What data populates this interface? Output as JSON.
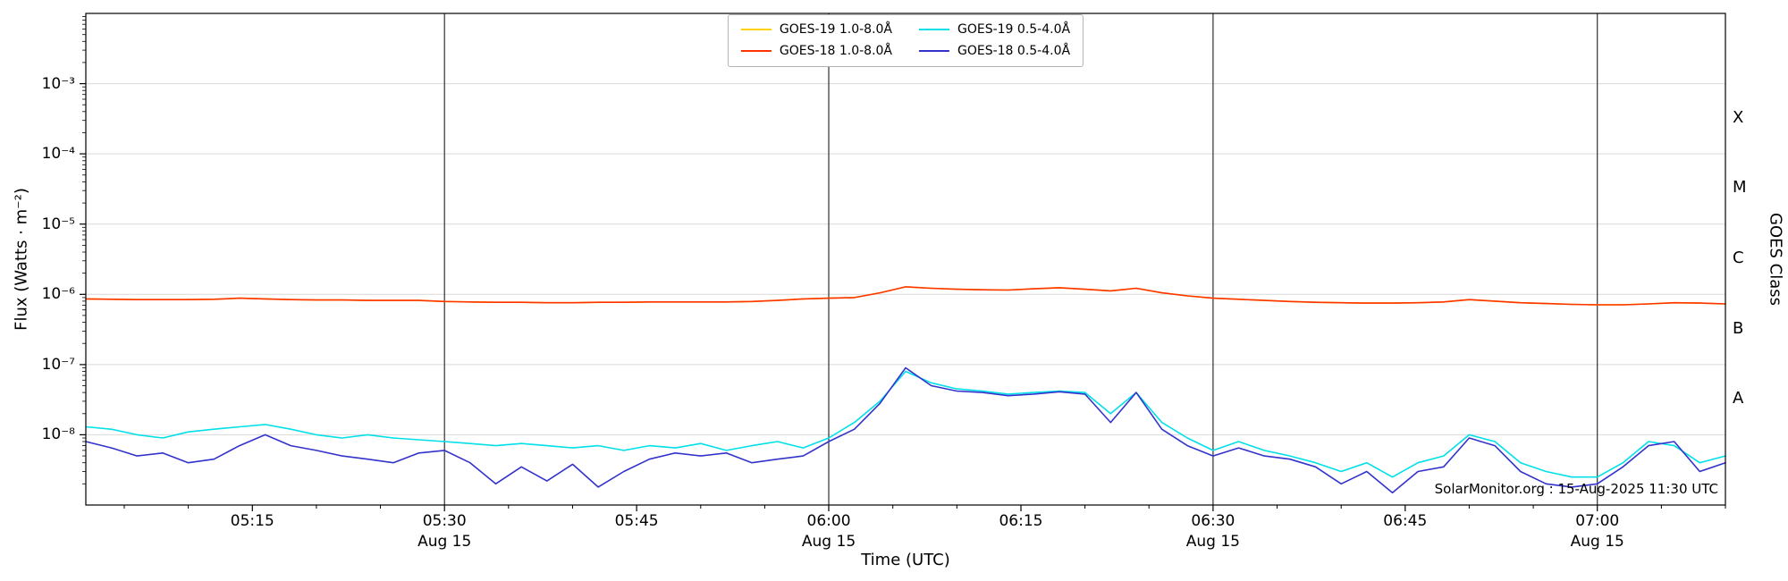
{
  "footer_note": "SolarMonitor.org : 15-Aug-2025 11:30 UTC",
  "chart_data": {
    "type": "line",
    "title": "",
    "xlabel": "Time (UTC)",
    "ylabel": "Flux (Watts · m⁻²)",
    "ylabel_right": "GOES Class",
    "x_unit": "minutes after 05:00 UTC, 15-Aug-2025",
    "x_domain": [
      2,
      130
    ],
    "y_scale": "log",
    "y_domain_exp": [
      -9,
      -2
    ],
    "grid": "horizontal gridlines at each decade; dark vertical lines at day-labelled ticks",
    "legend_position": "top center, 2 columns",
    "colors": {
      "grid": "#d9d9d9",
      "vline": "#2f2f2f",
      "frame": "#000000",
      "background": "#ffffff"
    },
    "x_ticks": [
      {
        "t": 15,
        "label": "05:15"
      },
      {
        "t": 30,
        "label": "05:30",
        "sublabel": "Aug 15",
        "vline": true
      },
      {
        "t": 45,
        "label": "05:45"
      },
      {
        "t": 60,
        "label": "06:00",
        "sublabel": "Aug 15",
        "vline": true
      },
      {
        "t": 75,
        "label": "06:15"
      },
      {
        "t": 90,
        "label": "06:30",
        "sublabel": "Aug 15",
        "vline": true
      },
      {
        "t": 105,
        "label": "06:45"
      },
      {
        "t": 120,
        "label": "07:00",
        "sublabel": "Aug 15",
        "vline": true
      }
    ],
    "y_ticks": [
      {
        "exp": -3,
        "label": "10⁻³"
      },
      {
        "exp": -4,
        "label": "10⁻⁴"
      },
      {
        "exp": -5,
        "label": "10⁻⁵"
      },
      {
        "exp": -6,
        "label": "10⁻⁶"
      },
      {
        "exp": -7,
        "label": "10⁻⁷"
      },
      {
        "exp": -8,
        "label": "10⁻⁸"
      }
    ],
    "goes_classes": [
      {
        "label": "X",
        "exp": -3.5
      },
      {
        "label": "M",
        "exp": -4.5
      },
      {
        "label": "C",
        "exp": -5.5
      },
      {
        "label": "B",
        "exp": -6.5
      },
      {
        "label": "A",
        "exp": -7.5
      }
    ],
    "x": [
      2,
      4,
      6,
      8,
      10,
      12,
      14,
      16,
      18,
      20,
      22,
      24,
      26,
      28,
      30,
      32,
      34,
      36,
      38,
      40,
      42,
      44,
      46,
      48,
      50,
      52,
      54,
      56,
      58,
      60,
      62,
      64,
      66,
      68,
      70,
      72,
      74,
      76,
      78,
      80,
      82,
      84,
      86,
      88,
      90,
      92,
      94,
      96,
      98,
      100,
      102,
      104,
      106,
      108,
      110,
      112,
      114,
      116,
      118,
      120,
      122,
      124,
      126,
      128,
      130
    ],
    "series": [
      {
        "name": "GOES-19 1.0-8.0Å",
        "color": "#ffd200",
        "note": "hidden behind GOES-18 1.0-8.0Å trace",
        "values": [
          8.6e-07,
          8.5e-07,
          8.4e-07,
          8.4e-07,
          8.4e-07,
          8.5e-07,
          8.8e-07,
          8.6e-07,
          8.4e-07,
          8.3e-07,
          8.3e-07,
          8.2e-07,
          8.2e-07,
          8.2e-07,
          7.9e-07,
          7.8e-07,
          7.7e-07,
          7.7e-07,
          7.6e-07,
          7.6e-07,
          7.7e-07,
          7.7e-07,
          7.8e-07,
          7.8e-07,
          7.8e-07,
          7.8e-07,
          7.9e-07,
          8.2e-07,
          8.6e-07,
          8.8e-07,
          9e-07,
          1.05e-06,
          1.28e-06,
          1.22e-06,
          1.18e-06,
          1.16e-06,
          1.15e-06,
          1.2e-06,
          1.24e-06,
          1.18e-06,
          1.12e-06,
          1.22e-06,
          1.05e-06,
          9.5e-07,
          8.8e-07,
          8.5e-07,
          8.2e-07,
          7.9e-07,
          7.7e-07,
          7.6e-07,
          7.5e-07,
          7.5e-07,
          7.6e-07,
          7.8e-07,
          8.4e-07,
          8e-07,
          7.6e-07,
          7.4e-07,
          7.2e-07,
          7.1e-07,
          7.1e-07,
          7.3e-07,
          7.6e-07,
          7.5e-07,
          7.3e-07
        ]
      },
      {
        "name": "GOES-18 1.0-8.0Å",
        "color": "#ff3300",
        "values": [
          8.6e-07,
          8.5e-07,
          8.4e-07,
          8.4e-07,
          8.4e-07,
          8.5e-07,
          8.8e-07,
          8.6e-07,
          8.4e-07,
          8.3e-07,
          8.3e-07,
          8.2e-07,
          8.2e-07,
          8.2e-07,
          7.9e-07,
          7.8e-07,
          7.7e-07,
          7.7e-07,
          7.6e-07,
          7.6e-07,
          7.7e-07,
          7.7e-07,
          7.8e-07,
          7.8e-07,
          7.8e-07,
          7.8e-07,
          7.9e-07,
          8.2e-07,
          8.6e-07,
          8.8e-07,
          9e-07,
          1.05e-06,
          1.28e-06,
          1.22e-06,
          1.18e-06,
          1.16e-06,
          1.15e-06,
          1.2e-06,
          1.24e-06,
          1.18e-06,
          1.12e-06,
          1.22e-06,
          1.05e-06,
          9.5e-07,
          8.8e-07,
          8.5e-07,
          8.2e-07,
          7.9e-07,
          7.7e-07,
          7.6e-07,
          7.5e-07,
          7.5e-07,
          7.6e-07,
          7.8e-07,
          8.4e-07,
          8e-07,
          7.6e-07,
          7.4e-07,
          7.2e-07,
          7.1e-07,
          7.1e-07,
          7.3e-07,
          7.6e-07,
          7.5e-07,
          7.3e-07
        ]
      },
      {
        "name": "GOES-19 0.5-4.0Å",
        "color": "#00e0e8",
        "values": [
          1.3e-08,
          1.2e-08,
          1e-08,
          9e-09,
          1.1e-08,
          1.2e-08,
          1.3e-08,
          1.4e-08,
          1.2e-08,
          1e-08,
          9e-09,
          1e-08,
          9e-09,
          8.5e-09,
          8e-09,
          7.5e-09,
          7e-09,
          7.5e-09,
          7e-09,
          6.5e-09,
          7e-09,
          6e-09,
          7e-09,
          6.5e-09,
          7.5e-09,
          6e-09,
          7e-09,
          8e-09,
          6.5e-09,
          9e-09,
          1.5e-08,
          3e-08,
          8e-08,
          5.5e-08,
          4.5e-08,
          4.2e-08,
          3.8e-08,
          4e-08,
          4.2e-08,
          4e-08,
          2e-08,
          4e-08,
          1.5e-08,
          9e-09,
          6e-09,
          8e-09,
          6e-09,
          5e-09,
          4e-09,
          3e-09,
          4e-09,
          2.5e-09,
          4e-09,
          5e-09,
          1e-08,
          8e-09,
          4e-09,
          3e-09,
          2.5e-09,
          2.5e-09,
          4e-09,
          8e-09,
          7e-09,
          4e-09,
          5e-09
        ]
      },
      {
        "name": "GOES-18 0.5-4.0Å",
        "color": "#3333cc",
        "values": [
          8e-09,
          6.5e-09,
          5e-09,
          5.5e-09,
          4e-09,
          4.5e-09,
          7e-09,
          1e-08,
          7e-09,
          6e-09,
          5e-09,
          4.5e-09,
          4e-09,
          5.5e-09,
          6e-09,
          4e-09,
          2e-09,
          3.5e-09,
          2.2e-09,
          3.8e-09,
          1.8e-09,
          3e-09,
          4.5e-09,
          5.5e-09,
          5e-09,
          5.5e-09,
          4e-09,
          4.5e-09,
          5e-09,
          8e-09,
          1.2e-08,
          2.8e-08,
          9e-08,
          5e-08,
          4.2e-08,
          4e-08,
          3.6e-08,
          3.8e-08,
          4.1e-08,
          3.8e-08,
          1.5e-08,
          4e-08,
          1.2e-08,
          7e-09,
          5e-09,
          6.5e-09,
          5e-09,
          4.5e-09,
          3.5e-09,
          2e-09,
          3e-09,
          1.5e-09,
          3e-09,
          3.5e-09,
          9e-09,
          7e-09,
          3e-09,
          2e-09,
          1.8e-09,
          2e-09,
          3.5e-09,
          7e-09,
          8e-09,
          3e-09,
          4e-09
        ]
      }
    ]
  }
}
